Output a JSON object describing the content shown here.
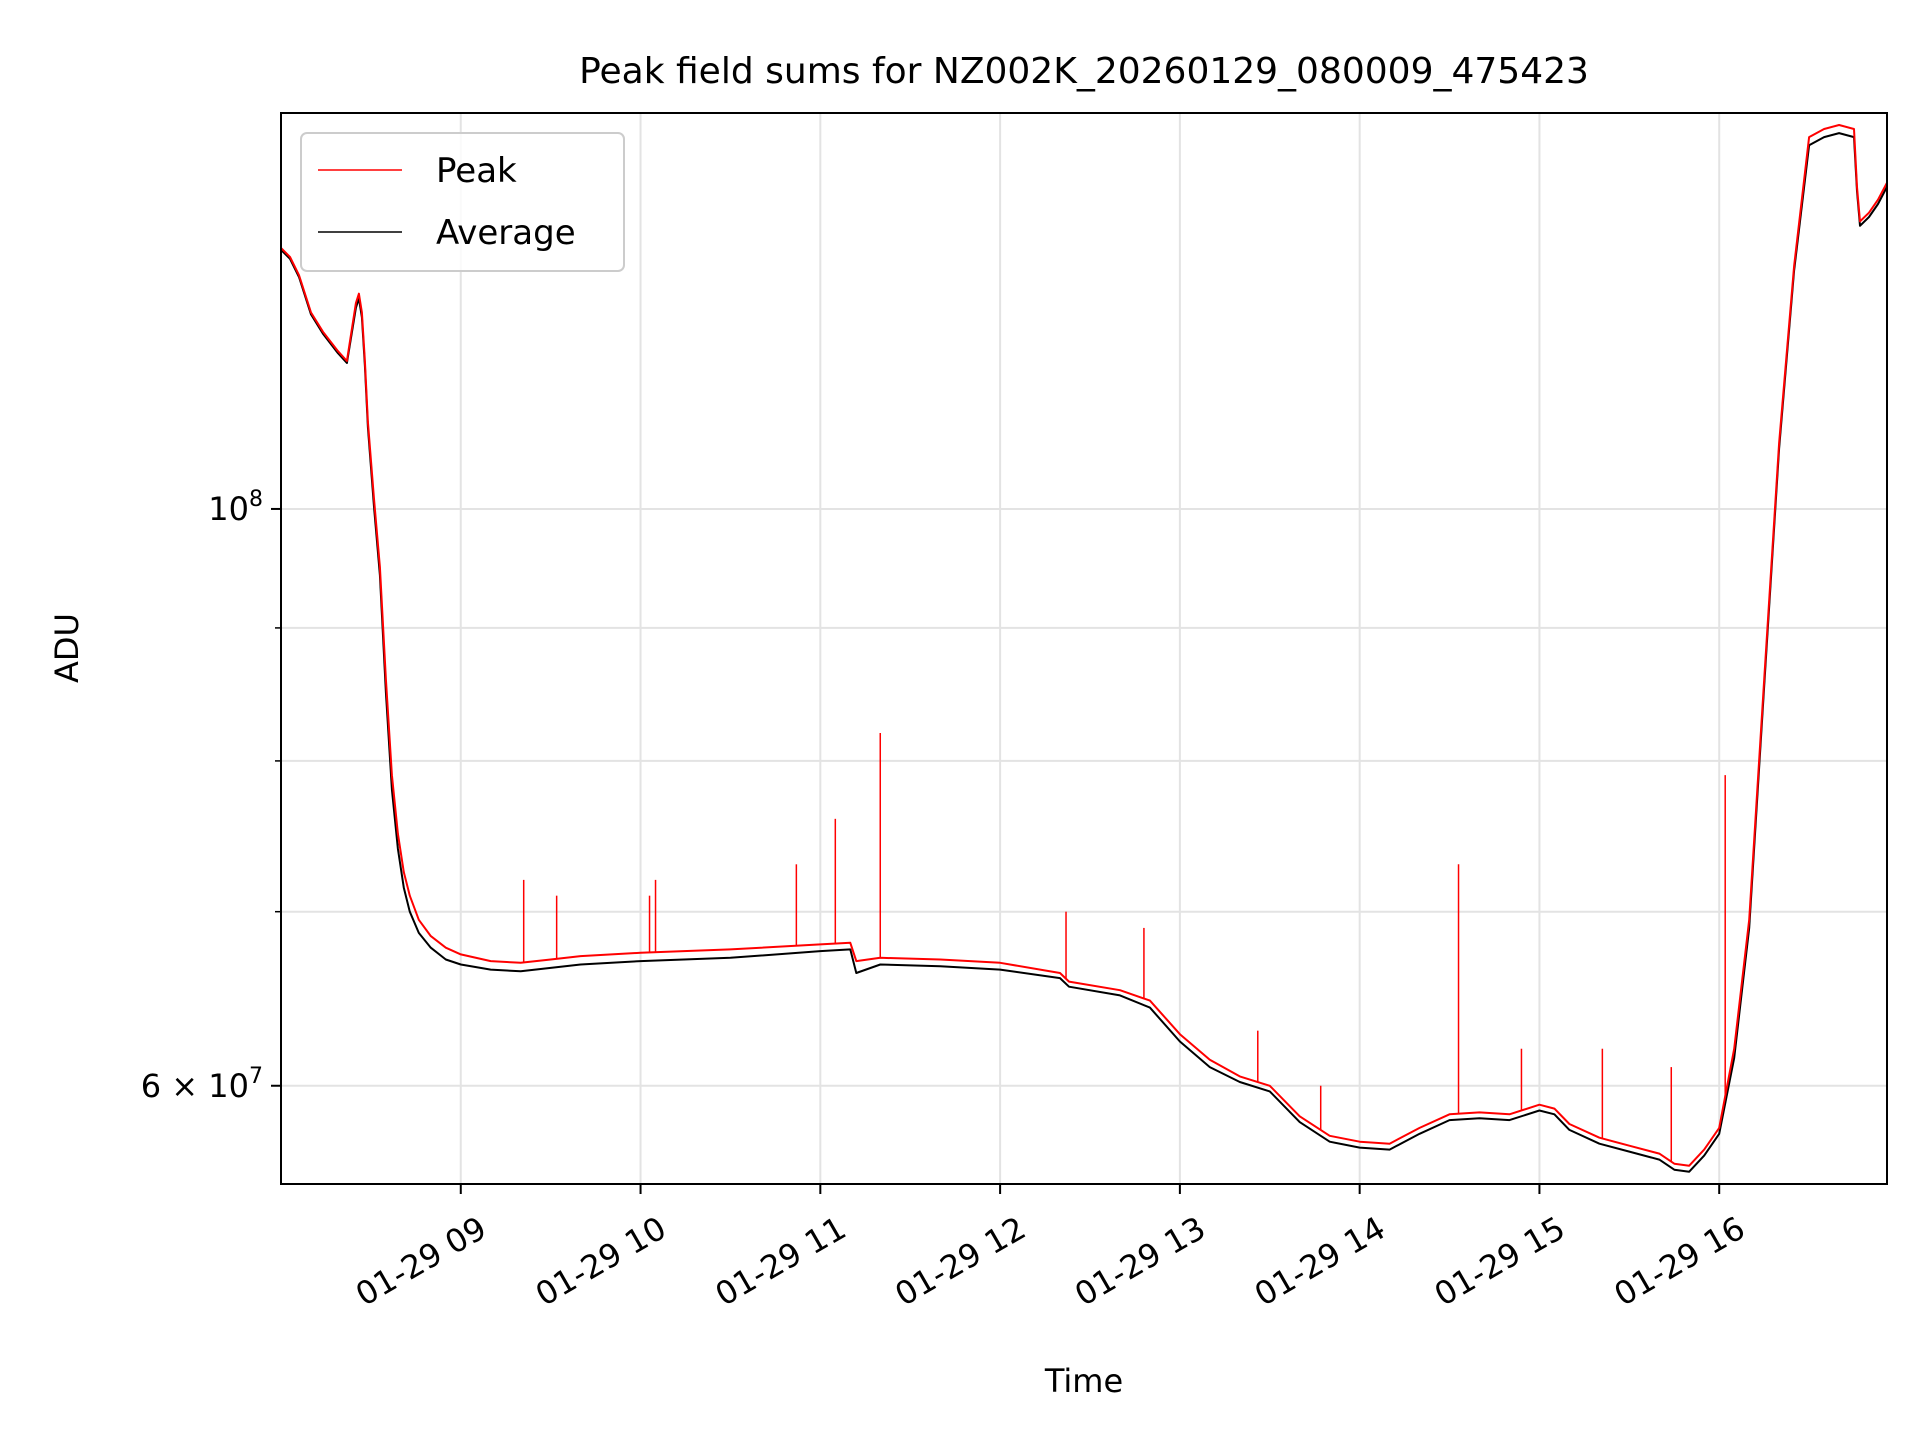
{
  "chart_data": {
    "type": "line",
    "title": "Peak field sums for NZ002K_20260129_080009_475423",
    "xlabel": "Time",
    "ylabel": "ADU",
    "yscale": "log",
    "grid": true,
    "legend_position": "upper-left",
    "xlim": [
      "2026-01-29 08:00",
      "2026-01-29 16:56"
    ],
    "ylim": [
      55000000,
      142000000
    ],
    "x_ticks": [
      "2026-01-29 09:00",
      "2026-01-29 10:00",
      "2026-01-29 11:00",
      "2026-01-29 12:00",
      "2026-01-29 13:00",
      "2026-01-29 14:00",
      "2026-01-29 15:00",
      "2026-01-29 16:00"
    ],
    "x_tick_labels": [
      "01-29 09",
      "01-29 10",
      "01-29 11",
      "01-29 12",
      "01-29 13",
      "01-29 14",
      "01-29 15",
      "01-29 16"
    ],
    "y_ticks": [
      {
        "value": 100000000,
        "label": "10",
        "exponent": "8",
        "mantissa": ""
      },
      {
        "value": 60000000,
        "label": "10",
        "exponent": "7",
        "mantissa": "6 × "
      }
    ],
    "y_minor_ticks": [
      70000000,
      80000000,
      90000000
    ],
    "series": [
      {
        "name": "Peak",
        "color": "#ff0000",
        "x": [
          "2026-01-29 08:00",
          "2026-01-29 08:03",
          "2026-01-29 08:06",
          "2026-01-29 08:10",
          "2026-01-29 08:14",
          "2026-01-29 08:19",
          "2026-01-29 08:22",
          "2026-01-29 08:25",
          "2026-01-29 08:26",
          "2026-01-29 08:27",
          "2026-01-29 08:28",
          "2026-01-29 08:29",
          "2026-01-29 08:31",
          "2026-01-29 08:33",
          "2026-01-29 08:35",
          "2026-01-29 08:37",
          "2026-01-29 08:39",
          "2026-01-29 08:41",
          "2026-01-29 08:43",
          "2026-01-29 08:46",
          "2026-01-29 08:50",
          "2026-01-29 08:55",
          "2026-01-29 09:00",
          "2026-01-29 09:10",
          "2026-01-29 09:20",
          "2026-01-29 09:30",
          "2026-01-29 09:40",
          "2026-01-29 10:00",
          "2026-01-29 10:30",
          "2026-01-29 11:00",
          "2026-01-29 11:10",
          "2026-01-29 11:12",
          "2026-01-29 11:20",
          "2026-01-29 11:40",
          "2026-01-29 12:00",
          "2026-01-29 12:20",
          "2026-01-29 12:23",
          "2026-01-29 12:40",
          "2026-01-29 12:50",
          "2026-01-29 13:00",
          "2026-01-29 13:10",
          "2026-01-29 13:20",
          "2026-01-29 13:30",
          "2026-01-29 13:40",
          "2026-01-29 13:50",
          "2026-01-29 14:00",
          "2026-01-29 14:10",
          "2026-01-29 14:20",
          "2026-01-29 14:30",
          "2026-01-29 14:40",
          "2026-01-29 14:50",
          "2026-01-29 15:00",
          "2026-01-29 15:05",
          "2026-01-29 15:10",
          "2026-01-29 15:20",
          "2026-01-29 15:30",
          "2026-01-29 15:40",
          "2026-01-29 15:45",
          "2026-01-29 15:50",
          "2026-01-29 15:55",
          "2026-01-29 16:00",
          "2026-01-29 16:05",
          "2026-01-29 16:10",
          "2026-01-29 16:15",
          "2026-01-29 16:20",
          "2026-01-29 16:25",
          "2026-01-29 16:30",
          "2026-01-29 16:35",
          "2026-01-29 16:40",
          "2026-01-29 16:45",
          "2026-01-29 16:46",
          "2026-01-29 16:47",
          "2026-01-29 16:50",
          "2026-01-29 16:53",
          "2026-01-29 16:56"
        ],
        "values": [
          126000000,
          125000000,
          123000000,
          119000000,
          117000000,
          115000000,
          114000000,
          120000000,
          121000000,
          119000000,
          114000000,
          108000000,
          101000000,
          95000000,
          86000000,
          79000000,
          75000000,
          72500000,
          71000000,
          69500000,
          68500000,
          67800000,
          67400000,
          67000000,
          66900000,
          67100000,
          67300000,
          67500000,
          67700000,
          68000000,
          68100000,
          67000000,
          67200000,
          67100000,
          66900000,
          66300000,
          65800000,
          65300000,
          64700000,
          62800000,
          61400000,
          60500000,
          60000000,
          58400000,
          57400000,
          57100000,
          57000000,
          57800000,
          58500000,
          58600000,
          58500000,
          59000000,
          58800000,
          58000000,
          57300000,
          56900000,
          56500000,
          56000000,
          55900000,
          56700000,
          57800000,
          62000000,
          69500000,
          86000000,
          106000000,
          124000000,
          139000000,
          140000000,
          140500000,
          140000000,
          133000000,
          129000000,
          130000000,
          131500000,
          133500000
        ]
      },
      {
        "name": "Average",
        "color": "#000000",
        "x": [
          "2026-01-29 08:00",
          "2026-01-29 08:03",
          "2026-01-29 08:06",
          "2026-01-29 08:10",
          "2026-01-29 08:14",
          "2026-01-29 08:19",
          "2026-01-29 08:22",
          "2026-01-29 08:25",
          "2026-01-29 08:26",
          "2026-01-29 08:27",
          "2026-01-29 08:28",
          "2026-01-29 08:29",
          "2026-01-29 08:31",
          "2026-01-29 08:33",
          "2026-01-29 08:35",
          "2026-01-29 08:37",
          "2026-01-29 08:39",
          "2026-01-29 08:41",
          "2026-01-29 08:43",
          "2026-01-29 08:46",
          "2026-01-29 08:50",
          "2026-01-29 08:55",
          "2026-01-29 09:00",
          "2026-01-29 09:10",
          "2026-01-29 09:20",
          "2026-01-29 09:30",
          "2026-01-29 09:40",
          "2026-01-29 10:00",
          "2026-01-29 10:30",
          "2026-01-29 11:00",
          "2026-01-29 11:10",
          "2026-01-29 11:12",
          "2026-01-29 11:20",
          "2026-01-29 11:40",
          "2026-01-29 12:00",
          "2026-01-29 12:20",
          "2026-01-29 12:23",
          "2026-01-29 12:40",
          "2026-01-29 12:50",
          "2026-01-29 13:00",
          "2026-01-29 13:10",
          "2026-01-29 13:20",
          "2026-01-29 13:30",
          "2026-01-29 13:40",
          "2026-01-29 13:50",
          "2026-01-29 14:00",
          "2026-01-29 14:10",
          "2026-01-29 14:20",
          "2026-01-29 14:30",
          "2026-01-29 14:40",
          "2026-01-29 14:50",
          "2026-01-29 15:00",
          "2026-01-29 15:05",
          "2026-01-29 15:10",
          "2026-01-29 15:20",
          "2026-01-29 15:30",
          "2026-01-29 15:40",
          "2026-01-29 15:45",
          "2026-01-29 15:50",
          "2026-01-29 15:55",
          "2026-01-29 16:00",
          "2026-01-29 16:05",
          "2026-01-29 16:10",
          "2026-01-29 16:15",
          "2026-01-29 16:20",
          "2026-01-29 16:25",
          "2026-01-29 16:30",
          "2026-01-29 16:35",
          "2026-01-29 16:40",
          "2026-01-29 16:45",
          "2026-01-29 16:46",
          "2026-01-29 16:47",
          "2026-01-29 16:50",
          "2026-01-29 16:53",
          "2026-01-29 16:56"
        ],
        "values": [
          125800000,
          124800000,
          122800000,
          118800000,
          116800000,
          114800000,
          113800000,
          119500000,
          120500000,
          118500000,
          113500000,
          107500000,
          100300000,
          94300000,
          85000000,
          78000000,
          74000000,
          71500000,
          70000000,
          68700000,
          67800000,
          67100000,
          66800000,
          66500000,
          66400000,
          66600000,
          66800000,
          67000000,
          67200000,
          67600000,
          67700000,
          66300000,
          66800000,
          66700000,
          66500000,
          66000000,
          65500000,
          65000000,
          64300000,
          62400000,
          61000000,
          60200000,
          59700000,
          58100000,
          57100000,
          56800000,
          56700000,
          57500000,
          58200000,
          58300000,
          58200000,
          58700000,
          58500000,
          57700000,
          57000000,
          56600000,
          56200000,
          55700000,
          55600000,
          56400000,
          57500000,
          61500000,
          69000000,
          85500000,
          105500000,
          123500000,
          138000000,
          139000000,
          139500000,
          139000000,
          132500000,
          128500000,
          129500000,
          131000000,
          133000000
        ]
      }
    ],
    "spikes": [
      {
        "series": "Peak",
        "x": "2026-01-29 09:21",
        "value": 72000000
      },
      {
        "series": "Peak",
        "x": "2026-01-29 09:32",
        "value": 71000000
      },
      {
        "series": "Peak",
        "x": "2026-01-29 10:03",
        "value": 71000000
      },
      {
        "series": "Peak",
        "x": "2026-01-29 10:05",
        "value": 72000000
      },
      {
        "series": "Peak",
        "x": "2026-01-29 10:52",
        "value": 73000000
      },
      {
        "series": "Peak",
        "x": "2026-01-29 11:05",
        "value": 76000000
      },
      {
        "series": "Peak",
        "x": "2026-01-29 11:20",
        "value": 82000000
      },
      {
        "series": "Peak",
        "x": "2026-01-29 12:22",
        "value": 70000000
      },
      {
        "series": "Peak",
        "x": "2026-01-29 12:48",
        "value": 69000000
      },
      {
        "series": "Peak",
        "x": "2026-01-29 13:26",
        "value": 63000000
      },
      {
        "series": "Peak",
        "x": "2026-01-29 13:47",
        "value": 60000000
      },
      {
        "series": "Peak",
        "x": "2026-01-29 14:33",
        "value": 73000000
      },
      {
        "series": "Peak",
        "x": "2026-01-29 14:54",
        "value": 62000000
      },
      {
        "series": "Peak",
        "x": "2026-01-29 15:21",
        "value": 62000000
      },
      {
        "series": "Peak",
        "x": "2026-01-29 15:44",
        "value": 61000000
      },
      {
        "series": "Peak",
        "x": "2026-01-29 16:02",
        "value": 79000000
      }
    ]
  }
}
